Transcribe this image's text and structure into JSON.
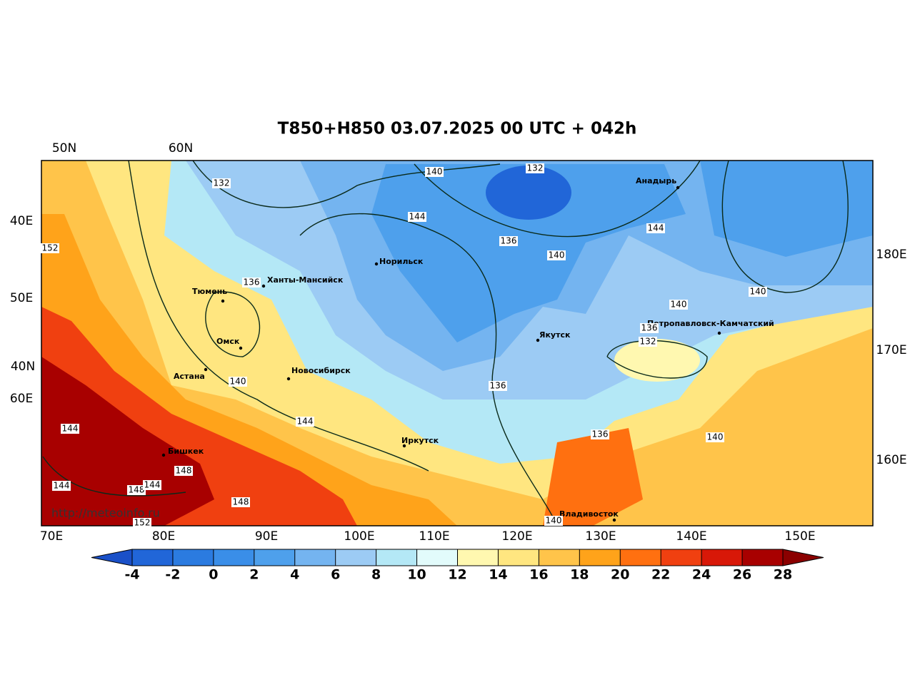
{
  "title": "T850+H850 03.07.2025 00 UTC + 042h",
  "grid_labels": {
    "top": [
      "50N",
      "60N"
    ],
    "left": [
      "40E",
      "50E",
      "40N",
      "60E"
    ],
    "right": [
      "180E",
      "170E",
      "160E"
    ],
    "bottom": [
      "70E",
      "80E",
      "90E",
      "100E",
      "110E",
      "120E",
      "130E",
      "140E",
      "150E"
    ]
  },
  "cities": [
    "Норильск",
    "Ханты-Мансийск",
    "Тюмень",
    "Омск",
    "Астана",
    "Новосибирск",
    "Якутск",
    "Анадырь",
    "Петропавловск-Камчатский",
    "Иркутск",
    "Бишкек",
    "Владивосток"
  ],
  "contour_labels": [
    132,
    140,
    132,
    144,
    136,
    140,
    144,
    140,
    140,
    136,
    132,
    136,
    140,
    144,
    136,
    136,
    140,
    152,
    144,
    144,
    148,
    148,
    144,
    148,
    140,
    152
  ],
  "colorbar": {
    "ticks": [
      -4,
      -2,
      0,
      2,
      4,
      6,
      8,
      10,
      12,
      14,
      16,
      18,
      20,
      22,
      24,
      26,
      28
    ],
    "colors": [
      "#2166d8",
      "#2b7be0",
      "#3a8ee8",
      "#4ea0ec",
      "#74b4f0",
      "#9ccbf4",
      "#b4e8f6",
      "#e2fbfb",
      "#fff8b0",
      "#ffe680",
      "#ffc44a",
      "#ffa31a",
      "#ff7010",
      "#f04010",
      "#d81808",
      "#a80000"
    ],
    "extend_colors": [
      "#1a50c8",
      "#8b0000"
    ]
  },
  "source": "http://meteoinfo.ru"
}
